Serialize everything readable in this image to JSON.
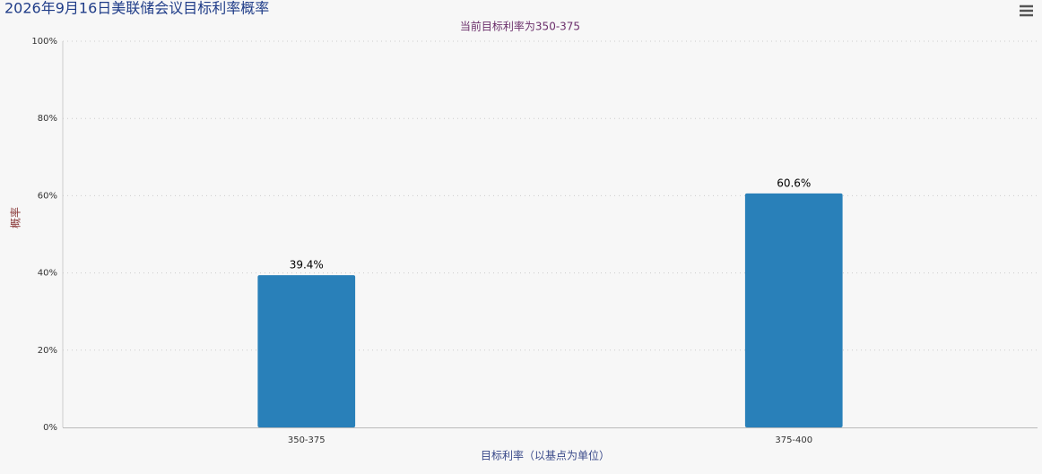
{
  "chart_data": {
    "type": "bar",
    "title": "2026年9月16日美联储会议目标利率概率",
    "subtitle": "当前目标利率为350-375",
    "x_label": "目标利率（以基点为单位）",
    "y_label": "概率",
    "categories": [
      "350-375",
      "375-400"
    ],
    "values": [
      39.4,
      60.6
    ],
    "value_labels": [
      "39.4%",
      "60.6%"
    ],
    "color": "#2980b9",
    "ylim": [
      0,
      100
    ],
    "yticks": [
      {
        "value": 0,
        "label": "0%"
      },
      {
        "value": 20,
        "label": "20%"
      },
      {
        "value": 40,
        "label": "40%"
      },
      {
        "value": 60,
        "label": "60%"
      },
      {
        "value": 80,
        "label": "80%"
      },
      {
        "value": 100,
        "label": "100%"
      }
    ],
    "grid": true
  }
}
